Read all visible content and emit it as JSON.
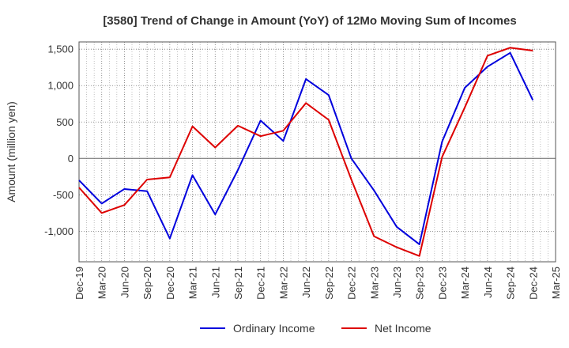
{
  "chart_data": {
    "type": "line",
    "title": "[3580]  Trend of Change in Amount (YoY) of 12Mo Moving Sum of Incomes",
    "xlabel": "",
    "ylabel": "Amount (million yen)",
    "categories": [
      "Dec-19",
      "Mar-20",
      "Jun-20",
      "Sep-20",
      "Dec-20",
      "Mar-21",
      "Jun-21",
      "Sep-21",
      "Dec-21",
      "Mar-22",
      "Jun-22",
      "Sep-22",
      "Dec-22",
      "Mar-23",
      "Jun-23",
      "Sep-23",
      "Dec-23",
      "Mar-24",
      "Jun-24",
      "Sep-24",
      "Dec-24",
      "Mar-25"
    ],
    "yticks": [
      -1000,
      -500,
      0,
      500,
      1000,
      1500
    ],
    "ytick_labels": [
      "-1,000",
      "-500",
      "0",
      "500",
      "1,000",
      "1,500"
    ],
    "ylim": [
      -1420,
      1600
    ],
    "grid": true,
    "legend_position": "bottom-center",
    "series": [
      {
        "name": "Ordinary Income",
        "color": "#0000dd",
        "values": [
          -300,
          -620,
          -420,
          -450,
          -1100,
          -230,
          -770,
          -160,
          520,
          240,
          1090,
          870,
          0,
          -440,
          -940,
          -1180,
          230,
          970,
          1260,
          1450,
          800,
          null
        ]
      },
      {
        "name": "Net Income",
        "color": "#dd0000",
        "values": [
          -400,
          -750,
          -640,
          -290,
          -260,
          440,
          150,
          450,
          305,
          380,
          760,
          530,
          -290,
          -1070,
          -1220,
          -1340,
          20,
          700,
          1410,
          1520,
          1480,
          null
        ]
      }
    ]
  }
}
